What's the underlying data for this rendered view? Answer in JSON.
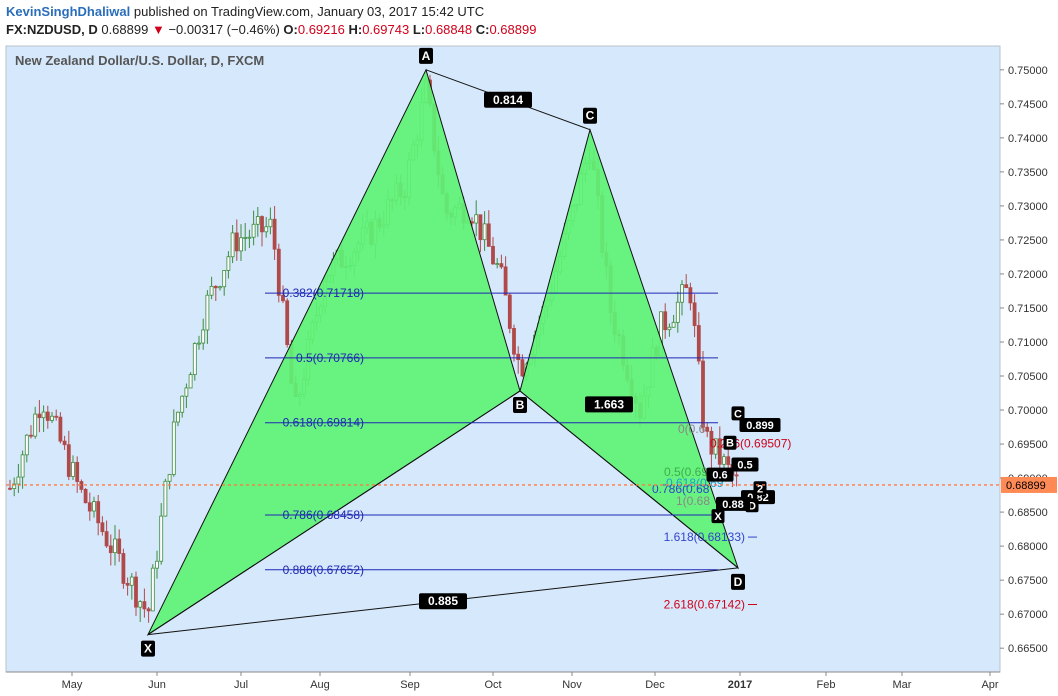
{
  "header": {
    "author": "KevinSinghDhaliwal",
    "published_text": "published on TradingView.com, January 03, 2017 15:42 UTC",
    "symbol": "FX:NZDUSD, D",
    "last": "0.68899",
    "change": "−0.00317 (−0.46%)",
    "o_label": "O:",
    "o_value": "0.69216",
    "h_label": "H:",
    "h_value": "0.69743",
    "l_label": "L:",
    "l_value": "0.68848",
    "c_label": "C:",
    "c_value": "0.68899",
    "down_arrow": "▼"
  },
  "chart_title": "New Zealand Dollar/U.S. Dollar, D, FXCM",
  "chart_data": {
    "type": "candlestick",
    "instrument": "NZDUSD",
    "timeframe": "D",
    "ylim": [
      0.6615,
      0.7535
    ],
    "y_ticks": [
      "0.75000",
      "0.74500",
      "0.74000",
      "0.73500",
      "0.73000",
      "0.72500",
      "0.72000",
      "0.71500",
      "0.71000",
      "0.70500",
      "0.70000",
      "0.69500",
      "0.69000",
      "0.68500",
      "0.68000",
      "0.67500",
      "0.67000",
      "0.66500"
    ],
    "x_ticks": [
      "May",
      "Jun",
      "Jul",
      "Aug",
      "Sep",
      "Oct",
      "Nov",
      "Dec",
      "2017",
      "Feb",
      "Mar",
      "Apr"
    ],
    "current_price": "0.68899",
    "pattern_points": [
      {
        "label": "X",
        "value": 0.667
      },
      {
        "label": "A",
        "value": 0.75
      },
      {
        "label": "B",
        "value": 0.7028
      },
      {
        "label": "C",
        "value": 0.7412
      },
      {
        "label": "D",
        "value": 0.6768
      }
    ],
    "pattern_ratios": [
      "0.814",
      "1.663",
      "0.885"
    ],
    "fib_levels": [
      {
        "text": "0.382(0.71718)",
        "value": 0.71718
      },
      {
        "text": "0.5(0.70766)",
        "value": 0.70766
      },
      {
        "text": "0.618(0.69814)",
        "value": 0.69814
      },
      {
        "text": "0.786(0.68458)",
        "value": 0.68458
      },
      {
        "text": "0.886(0.67652)",
        "value": 0.67652
      }
    ],
    "extensions": [
      {
        "text": "1.618(0.68133)",
        "value": 0.68133,
        "color": "#3345cc"
      },
      {
        "text": "2.618(0.67142)",
        "value": 0.67142,
        "color": "#d0021b"
      }
    ],
    "cluster_labels": [
      {
        "text": "0.236(0.69507)",
        "value": 0.6951,
        "color": "#d0021b"
      },
      {
        "text": "0.5(0.69",
        "value": 0.6909,
        "color": "#3fae49"
      },
      {
        "text": "0.618(0.69",
        "value": 0.6893,
        "color": "#1aa3c9"
      },
      {
        "text": "0.786(0.68",
        "value": 0.6884,
        "color": "#3345cc"
      },
      {
        "text": "1(0.68",
        "value": 0.6866,
        "color": "#888888"
      },
      {
        "text": "0(0.6",
        "value": 0.6972,
        "color": "#888888"
      }
    ],
    "cluster_boxes": [
      "C",
      "B",
      "0.899",
      "0.82",
      "D",
      "X",
      "2",
      "0.88",
      "0.5",
      "0.6"
    ],
    "colors": {
      "background": "#d6e8fb",
      "pattern_fill": "#5ef275",
      "up_candle": "#3d8c3d",
      "down_candle": "#b04a4a",
      "fib_line": "#1f27b5",
      "price_line": "#ff7a45",
      "price_label_bg": "#ff8a55"
    }
  }
}
